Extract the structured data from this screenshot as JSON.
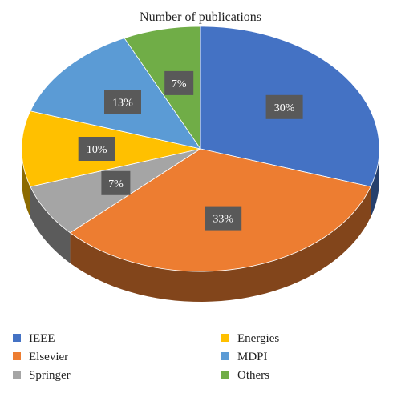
{
  "chart_data": {
    "type": "pie",
    "title": "Number of publications",
    "categories": [
      "IEEE",
      "Elsevier",
      "Springer",
      "Energies",
      "MDPI",
      "Others"
    ],
    "values": [
      30,
      33,
      7,
      10,
      13,
      7
    ],
    "labels": [
      "30%",
      "33%",
      "7%",
      "10%",
      "13%",
      "7%"
    ],
    "colors": [
      "#4472C4",
      "#ED7D31",
      "#A5A5A5",
      "#FFC000",
      "#5B9BD5",
      "#70AD47"
    ],
    "legend_position": "bottom",
    "style": "3d"
  }
}
